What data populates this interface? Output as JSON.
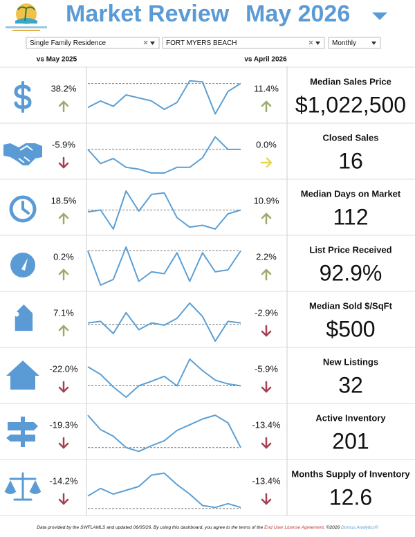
{
  "header": {
    "title": "Market Review",
    "period": "May 2026"
  },
  "filters": [
    "Single Family Residence",
    "FORT MYERS BEACH",
    "Monthly"
  ],
  "compare_labels": [
    "vs May 2025",
    "vs April 2026"
  ],
  "metrics": [
    {
      "name": "Median Sales Price",
      "value": "$1,022,500",
      "yoy": "38.2%",
      "yoy_trend": "up",
      "mom": "11.4%",
      "mom_trend": "up",
      "sparkline": [
        25,
        42,
        28,
        58,
        50,
        42,
        20,
        38,
        95,
        92,
        8,
        67,
        88
      ],
      "reference": 88
    },
    {
      "name": "Closed Sales",
      "value": "16",
      "yoy": "-5.9%",
      "yoy_trend": "down",
      "mom": "0.0%",
      "mom_trend": "flat",
      "sparkline": [
        62,
        25,
        38,
        15,
        10,
        0,
        0,
        15,
        15,
        40,
        95,
        62,
        62
      ],
      "reference": 62
    },
    {
      "name": "Median Days on Market",
      "value": "112",
      "yoy": "18.5%",
      "yoy_trend": "up",
      "mom": "10.9%",
      "mom_trend": "up",
      "sparkline": [
        45,
        50,
        0,
        100,
        47,
        91,
        95,
        30,
        5,
        10,
        0,
        40,
        50
      ],
      "reference": 50
    },
    {
      "name": "List Price Received",
      "value": "92.9%",
      "yoy": "0.2%",
      "yoy_trend": "up",
      "mom": "2.2%",
      "mom_trend": "up",
      "sparkline": [
        90,
        0,
        15,
        100,
        10,
        35,
        30,
        85,
        10,
        85,
        35,
        40,
        90
      ],
      "reference": 90
    },
    {
      "name": "Median Sold $/SqFt",
      "value": "$500",
      "yoy": "7.1%",
      "yoy_trend": "up",
      "mom": "-2.9%",
      "mom_trend": "down",
      "sparkline": [
        48,
        52,
        20,
        75,
        30,
        48,
        42,
        60,
        100,
        65,
        0,
        52,
        48
      ],
      "reference": 44
    },
    {
      "name": "New Listings",
      "value": "32",
      "yoy": "-22.0%",
      "yoy_trend": "down",
      "mom": "-5.9%",
      "mom_trend": "down",
      "sparkline": [
        80,
        60,
        27,
        0,
        30,
        42,
        55,
        30,
        100,
        70,
        45,
        35,
        30
      ],
      "reference": 30
    },
    {
      "name": "Active Inventory",
      "value": "201",
      "yoy": "-19.3%",
      "yoy_trend": "down",
      "mom": "-13.4%",
      "mom_trend": "down",
      "sparkline": [
        100,
        62,
        45,
        15,
        5,
        20,
        33,
        60,
        75,
        90,
        100,
        80,
        15
      ],
      "reference": 15
    },
    {
      "name": "Months Supply of Inventory",
      "value": "12.6",
      "yoy": "-14.2%",
      "yoy_trend": "down",
      "mom": "-13.4%",
      "mom_trend": "down",
      "sparkline": [
        35,
        55,
        40,
        50,
        60,
        90,
        95,
        65,
        40,
        10,
        5,
        15,
        5
      ],
      "reference": 2
    }
  ],
  "footer": [
    "Data provided by the SWFLAMLS and updated 06/05/26.  By using this dashboard, you agree to the terms of the ",
    "End User License Agreement",
    ".  ©2026 ",
    "Domus Analytics®"
  ]
}
